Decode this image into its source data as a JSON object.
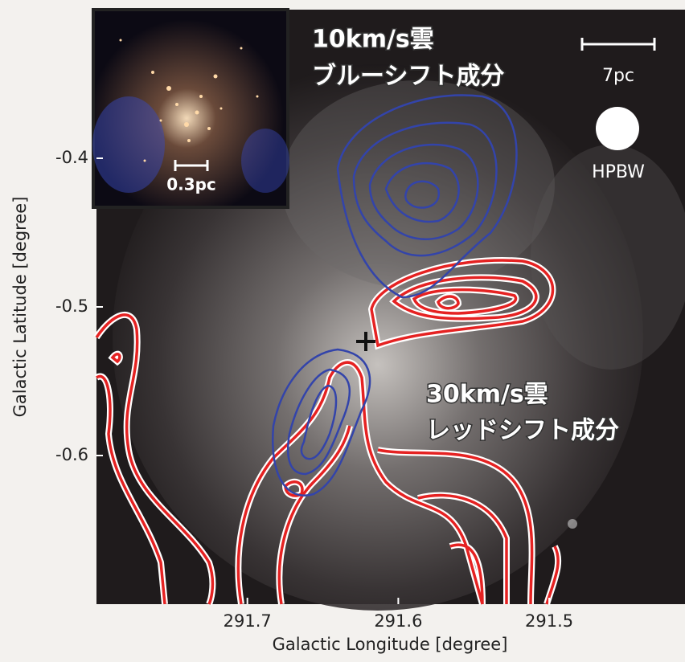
{
  "chart_data": {
    "type": "image",
    "xlabel": "Galactic Longitude [degree]",
    "ylabel": "Galactic Latitude [degree]",
    "xlim": [
      291.8,
      291.41
    ],
    "xticks": [
      291.7,
      291.6,
      291.5
    ],
    "ylim": [
      -0.7,
      -0.3
    ],
    "yticks": [
      -0.4,
      -0.5,
      -0.6
    ],
    "annotations": [
      "10km/s雲",
      "ブルーシフト成分",
      "30km/s雲",
      "レッドシフト成分",
      "7pc",
      "HPBW",
      "0.3pc"
    ]
  }
}
